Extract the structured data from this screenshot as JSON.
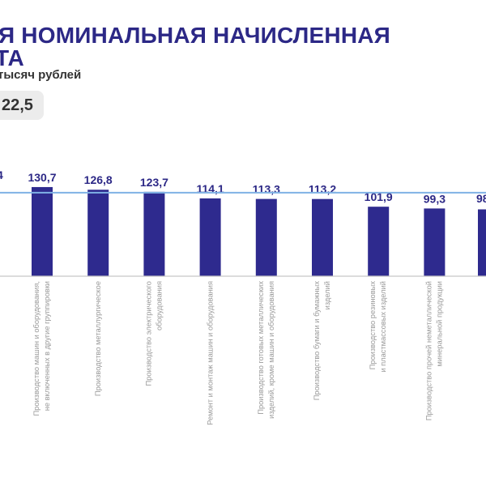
{
  "header": {
    "title_line1": "Я НОМИНАЛЬНАЯ НАЧИСЛЕННАЯ",
    "title_line2": "ТА",
    "subtitle": "тысяч рублей",
    "badge_value": "22,5"
  },
  "colors": {
    "bar": "#2e2a8e",
    "title": "#2c2886",
    "reference_line": "#7fb2e5",
    "axis": "#c8c8c8",
    "category_text": "#9a9a9a"
  },
  "chart_data": {
    "type": "bar",
    "reference_line": {
      "value": 122.5
    },
    "ylim": [
      0,
      130.7
    ],
    "grid": false,
    "categories": [
      [
        "Производство машин и оборудования,",
        "не включенных в другие группировки"
      ],
      [
        "Производство металлургическое"
      ],
      [
        "Производство электрического",
        "оборудования"
      ],
      [
        "Ремонт и монтаж машин и оборудования"
      ],
      [
        "Производство готовых металлических",
        "изделий, кроме машин и оборудования"
      ],
      [
        "Производство бумаги и бумажных",
        "изделий"
      ],
      [
        "Производство резиновых",
        "и пластмассовых изделий"
      ],
      [
        "Производство прочей неметаллической",
        "минеральной продукции"
      ]
    ],
    "values": [
      130.7,
      126.8,
      123.7,
      114.1,
      113.3,
      113.2,
      101.9,
      99.3
    ],
    "value_labels": [
      "130,7",
      "126,8",
      "123,7",
      "114,1",
      "113,3",
      "113,2",
      "101,9",
      "99,3"
    ],
    "partial_left_label": "4",
    "partial_right_label": "98",
    "partial_right_value": 98
  }
}
